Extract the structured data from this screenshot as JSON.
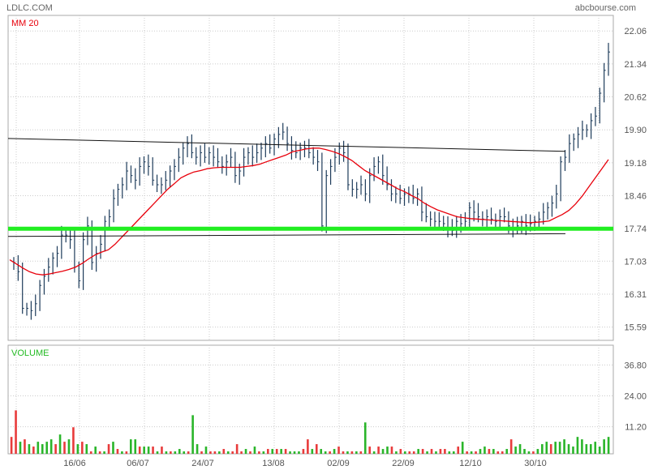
{
  "header": {
    "ticker": "LDLC.COM",
    "source": "abcbourse.com"
  },
  "colors": {
    "ma": "#e8000b",
    "support": "#22ee22",
    "up": "#2ab52a",
    "down": "#e83b3b",
    "grid": "#cccccc",
    "candle": "#1d3b5a"
  },
  "chart_data": [
    {
      "type": "candlestick",
      "title": "",
      "legend": [
        "MM 20"
      ],
      "x_ticks": [
        "16/06",
        "06/07",
        "24/07",
        "13/08",
        "02/09",
        "22/09",
        "12/10",
        "30/10"
      ],
      "y_ticks": [
        22.06,
        21.34,
        20.62,
        19.9,
        19.18,
        18.46,
        17.74,
        17.03,
        16.31,
        15.59
      ],
      "ylim": [
        15.3,
        22.4
      ],
      "grid": true,
      "close": [
        17.0,
        16.8,
        16.0,
        16.0,
        15.95,
        16.1,
        16.5,
        16.7,
        16.9,
        17.1,
        17.2,
        17.6,
        17.6,
        17.5,
        16.9,
        16.6,
        17.5,
        17.8,
        17.0,
        17.2,
        17.4,
        17.9,
        18.0,
        18.4,
        18.6,
        18.7,
        19.0,
        18.9,
        18.8,
        19.1,
        19.2,
        19.1,
        18.8,
        18.7,
        18.7,
        18.8,
        19.0,
        19.1,
        19.3,
        19.5,
        19.6,
        19.4,
        19.3,
        19.4,
        19.3,
        19.4,
        19.3,
        19.2,
        19.1,
        19.2,
        19.3,
        18.9,
        19.0,
        19.3,
        19.4,
        19.3,
        19.4,
        19.5,
        19.6,
        19.5,
        19.7,
        19.8,
        19.85,
        19.6,
        19.45,
        19.4,
        19.5,
        19.5,
        19.4,
        19.3,
        19.2,
        17.8,
        18.9,
        19.1,
        19.3,
        19.5,
        19.4,
        18.7,
        18.6,
        18.6,
        18.7,
        18.5,
        18.9,
        19.1,
        19.2,
        18.9,
        18.7,
        18.5,
        18.5,
        18.4,
        18.5,
        18.5,
        18.4,
        18.5,
        18.1,
        18.0,
        17.95,
        17.9,
        17.9,
        17.85,
        17.75,
        17.7,
        17.9,
        17.85,
        17.9,
        18.2,
        18.1,
        18.0,
        17.95,
        18.0,
        17.95,
        17.9,
        18.0,
        18.0,
        17.8,
        17.75,
        17.8,
        17.9,
        17.8,
        17.85,
        17.9,
        17.95,
        18.1,
        18.2,
        18.3,
        18.5,
        19.2,
        19.3,
        19.6,
        19.7,
        19.8,
        19.9,
        19.9,
        20.1,
        20.2,
        20.7,
        21.2,
        21.6
      ],
      "moving_average_20": [
        17.06,
        16.97,
        16.88,
        16.8,
        16.75,
        16.73,
        16.75,
        16.78,
        16.81,
        16.85,
        16.9,
        16.98,
        17.08,
        17.17,
        17.23,
        17.28,
        17.4,
        17.55,
        17.7,
        17.85,
        18.0,
        18.15,
        18.3,
        18.45,
        18.6,
        18.72,
        18.85,
        18.92,
        18.98,
        19.01,
        19.05,
        19.07,
        19.08,
        19.08,
        19.08,
        19.08,
        19.1,
        19.12,
        19.15,
        19.2,
        19.25,
        19.3,
        19.35,
        19.42,
        19.45,
        19.48,
        19.5,
        19.5,
        19.47,
        19.43,
        19.38,
        19.31,
        19.23,
        19.12,
        19.01,
        18.93,
        18.85,
        18.77,
        18.69,
        18.61,
        18.55,
        18.47,
        18.4,
        18.3,
        18.22,
        18.15,
        18.1,
        18.05,
        18.0,
        17.98,
        17.96,
        17.95,
        17.94,
        17.93,
        17.92,
        17.91,
        17.9,
        17.89,
        17.88,
        17.87,
        17.88,
        17.89,
        17.91,
        17.98,
        18.05,
        18.14,
        18.28,
        18.45,
        18.65,
        18.85,
        19.05,
        19.25
      ],
      "trendlines": [
        {
          "from": [
            "2014-06-02",
            19.71
          ],
          "to": [
            "2014-11-05",
            19.43
          ]
        },
        {
          "from": [
            "2014-06-02",
            17.57
          ],
          "to": [
            "2014-11-05",
            17.63
          ]
        }
      ],
      "support_level": 17.74
    },
    {
      "type": "bar",
      "title": "",
      "legend": [
        "VOLUME"
      ],
      "y_ticks": [
        36.8,
        24.0,
        11.2
      ],
      "ylim": [
        0,
        45
      ],
      "values": [
        7,
        18,
        5,
        6,
        4,
        3,
        5,
        4,
        5,
        6,
        4,
        8,
        5,
        6,
        11,
        4,
        5,
        4,
        1,
        3,
        1,
        1,
        4,
        5,
        2,
        1,
        1,
        6,
        6,
        3,
        3,
        3,
        3,
        1,
        3,
        1,
        1,
        1,
        2,
        1,
        1,
        16,
        4,
        1,
        3,
        1,
        1,
        1,
        2,
        1,
        1,
        4,
        1,
        2,
        1,
        3,
        1,
        1,
        2,
        2,
        2,
        2,
        2,
        1,
        1,
        1,
        2,
        6,
        2,
        4,
        2,
        1,
        1,
        2,
        3,
        1,
        1,
        1,
        1,
        1,
        13,
        3,
        1,
        3,
        2,
        3,
        3,
        1,
        2,
        1,
        1,
        1,
        2,
        2,
        1,
        2,
        1,
        2,
        2,
        1,
        1,
        3,
        5,
        1,
        1,
        1,
        2,
        3,
        2,
        2,
        1,
        1,
        2,
        6,
        3,
        4,
        2,
        1,
        1,
        2,
        4,
        5,
        4,
        5,
        5,
        6,
        4,
        3,
        7,
        6,
        4,
        4,
        5,
        3,
        6,
        7
      ],
      "up": [
        false,
        false,
        true,
        false,
        true,
        false,
        true,
        true,
        true,
        true,
        false,
        true,
        false,
        true,
        false,
        true,
        false,
        true,
        false,
        true,
        false,
        true,
        false,
        true,
        false,
        true,
        false,
        true,
        true,
        false,
        true,
        true,
        false,
        true,
        false,
        true,
        false,
        true,
        true,
        true,
        false,
        true,
        true,
        false,
        true,
        false,
        false,
        true,
        false,
        true,
        false,
        false,
        false,
        true,
        false,
        true,
        false,
        true,
        false,
        true,
        false,
        true,
        false,
        true,
        true,
        true,
        false,
        false,
        true,
        false,
        true,
        true,
        false,
        true,
        false,
        false,
        true,
        false,
        true,
        false,
        true,
        false,
        true,
        false,
        true,
        true,
        false,
        true,
        false,
        true,
        false,
        false,
        true,
        false,
        true,
        false,
        true,
        false,
        false,
        true,
        true,
        false,
        true,
        false,
        true,
        false,
        true,
        true,
        false,
        true,
        false,
        false,
        true,
        false,
        true,
        true,
        true,
        true,
        false,
        true,
        true,
        true,
        false,
        true,
        true,
        true,
        true,
        true,
        true,
        true,
        true,
        true,
        true,
        true,
        true,
        true
      ]
    }
  ]
}
